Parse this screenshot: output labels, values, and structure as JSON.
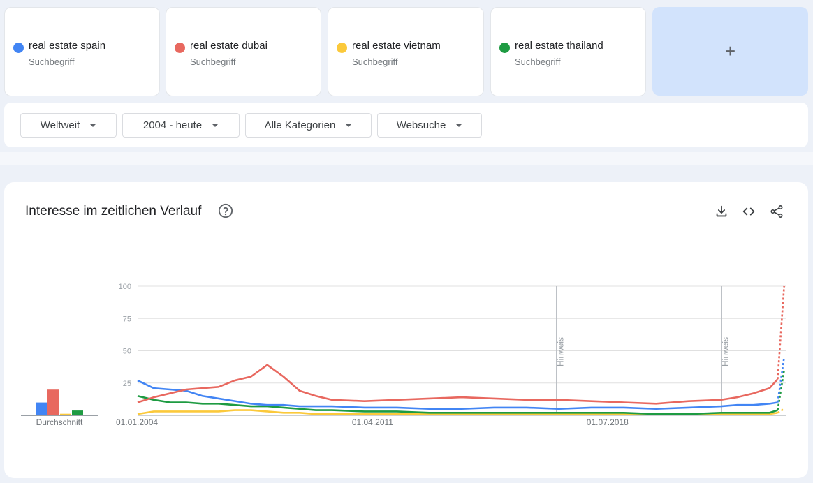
{
  "terms": [
    {
      "name": "real estate spain",
      "type": "Suchbegriff",
      "color": "#4285f4"
    },
    {
      "name": "real estate dubai",
      "type": "Suchbegriff",
      "color": "#e8685f"
    },
    {
      "name": "real estate vietnam",
      "type": "Suchbegriff",
      "color": "#fbc93b"
    },
    {
      "name": "real estate thailand",
      "type": "Suchbegriff",
      "color": "#1e9b42"
    }
  ],
  "add_label": "+",
  "filters": {
    "region": "Weltweit",
    "period": "2004 - heute",
    "category": "Alle Kategorien",
    "search_type": "Websuche"
  },
  "card": {
    "title": "Interesse im zeitlichen Verlauf",
    "icons": [
      "help-icon",
      "download-icon",
      "embed-icon",
      "share-icon"
    ]
  },
  "chart_data": {
    "type": "line",
    "title": "Interesse im zeitlichen Verlauf",
    "x_start": "01.01.2004",
    "x_end": "2024",
    "x_tick_labels": [
      "01.01.2004",
      "01.04.2011",
      "01.07.2018"
    ],
    "ylim": [
      0,
      100
    ],
    "y_ticks": [
      100,
      75,
      50,
      25
    ],
    "grid": true,
    "notes": [
      {
        "x": 2016.9,
        "label": "Hinweis"
      },
      {
        "x": 2022.0,
        "label": "Hinweis"
      }
    ],
    "average": {
      "label": "Durchschnitt",
      "values": [
        8,
        16,
        1,
        3
      ]
    },
    "x": [
      2004.0,
      2004.5,
      2005.0,
      2005.5,
      2006.0,
      2006.5,
      2007.0,
      2007.5,
      2008.0,
      2008.5,
      2009.0,
      2009.5,
      2010.0,
      2011.0,
      2012.0,
      2013.0,
      2014.0,
      2015.0,
      2016.0,
      2017.0,
      2018.0,
      2019.0,
      2020.0,
      2021.0,
      2022.0,
      2022.5,
      2023.0,
      2023.5,
      2023.75,
      2023.95
    ],
    "series": [
      {
        "name": "real estate spain",
        "color": "#4285f4",
        "values": [
          27,
          21,
          20,
          19,
          15,
          13,
          11,
          9,
          8,
          8,
          7,
          7,
          7,
          6,
          6,
          5,
          5,
          6,
          6,
          5,
          6,
          6,
          5,
          6,
          7,
          8,
          8,
          9,
          10,
          45
        ]
      },
      {
        "name": "real estate dubai",
        "color": "#e8685f",
        "values": [
          10,
          14,
          17,
          20,
          21,
          22,
          27,
          30,
          39,
          30,
          19,
          15,
          12,
          11,
          12,
          13,
          14,
          13,
          12,
          12,
          11,
          10,
          9,
          11,
          12,
          14,
          17,
          21,
          28,
          100
        ]
      },
      {
        "name": "real estate vietnam",
        "color": "#fbc93b",
        "values": [
          1,
          3,
          3,
          3,
          3,
          3,
          4,
          4,
          3,
          2,
          2,
          1,
          1,
          1,
          1,
          1,
          1,
          1,
          1,
          1,
          1,
          1,
          1,
          1,
          1,
          1,
          1,
          1,
          2,
          5
        ]
      },
      {
        "name": "real estate thailand",
        "color": "#1e9b42",
        "values": [
          15,
          12,
          10,
          10,
          9,
          9,
          8,
          7,
          7,
          6,
          5,
          4,
          4,
          3,
          3,
          2,
          2,
          2,
          2,
          2,
          2,
          2,
          1,
          1,
          2,
          2,
          2,
          2,
          4,
          35
        ]
      }
    ]
  }
}
